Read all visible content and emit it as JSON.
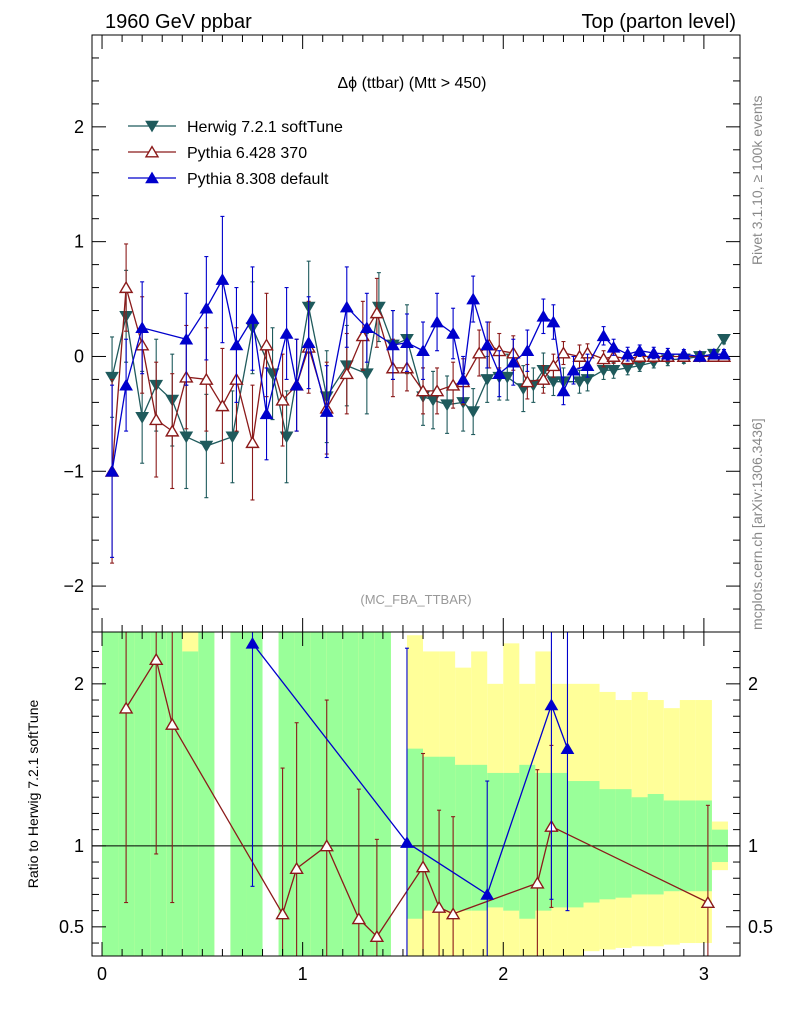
{
  "header": {
    "left": "1960 GeV ppbar",
    "right": "Top (parton level)"
  },
  "side_labels": {
    "rivet": "Rivet 3.1.10, ≥ 100k events",
    "mcplots": "mcplots.cern.ch [arXiv:1306.3436]"
  },
  "chart_data": [
    {
      "type": "line",
      "title": "Δϕ (ttbar) (Mtt > 450)",
      "watermark": "(MC_FBA_TTBAR)",
      "xlabel": "",
      "ylabel": "",
      "xlim": [
        -0.05,
        3.18
      ],
      "ylim": [
        -2.4,
        2.8
      ],
      "yticks": [
        "−2",
        "−1",
        "0",
        "1",
        "2"
      ],
      "legend_position": "top-left",
      "series": [
        {
          "name": "Herwig 7.2.1 softTune",
          "color": "#1f5a5c",
          "marker": "triangle-down-filled",
          "x": [
            0.05,
            0.12,
            0.2,
            0.27,
            0.35,
            0.42,
            0.52,
            0.65,
            0.75,
            0.85,
            0.92,
            1.03,
            1.12,
            1.22,
            1.32,
            1.38,
            1.45,
            1.52,
            1.6,
            1.65,
            1.72,
            1.8,
            1.85,
            1.92,
            1.98,
            2.02,
            2.1,
            2.15,
            2.2,
            2.25,
            2.3,
            2.38,
            2.42,
            2.5,
            2.55,
            2.62,
            2.68,
            2.75,
            2.82,
            2.9,
            2.98,
            3.05,
            3.1
          ],
          "values": [
            -0.18,
            0.35,
            -0.53,
            -0.25,
            -0.38,
            -0.7,
            -0.78,
            -0.7,
            0.25,
            -0.15,
            -0.7,
            0.43,
            -0.35,
            -0.08,
            -0.15,
            0.43,
            0.1,
            0.15,
            -0.35,
            -0.38,
            -0.42,
            -0.4,
            -0.48,
            -0.2,
            -0.18,
            -0.18,
            -0.28,
            -0.25,
            -0.12,
            -0.22,
            -0.22,
            -0.22,
            -0.2,
            -0.12,
            -0.12,
            -0.1,
            -0.08,
            -0.05,
            -0.03,
            -0.02,
            0.0,
            0.02,
            0.15
          ],
          "errors": [
            0.35,
            0.4,
            0.4,
            0.4,
            0.4,
            0.45,
            0.45,
            0.4,
            0.4,
            0.4,
            0.4,
            0.4,
            0.4,
            0.35,
            0.35,
            0.3,
            0.3,
            0.3,
            0.25,
            0.25,
            0.25,
            0.25,
            0.2,
            0.2,
            0.2,
            0.2,
            0.2,
            0.15,
            0.15,
            0.12,
            0.12,
            0.1,
            0.1,
            0.08,
            0.07,
            0.06,
            0.05,
            0.05,
            0.05,
            0.04,
            0.04,
            0.04,
            0.04
          ]
        },
        {
          "name": "Pythia 6.428 370",
          "color": "#8b1a1a",
          "marker": "triangle-up-open",
          "x": [
            0.05,
            0.12,
            0.2,
            0.27,
            0.35,
            0.42,
            0.52,
            0.6,
            0.67,
            0.75,
            0.82,
            0.9,
            0.97,
            1.03,
            1.12,
            1.22,
            1.3,
            1.37,
            1.45,
            1.52,
            1.6,
            1.67,
            1.75,
            1.8,
            1.88,
            1.93,
            1.98,
            2.05,
            2.12,
            2.2,
            2.25,
            2.3,
            2.38,
            2.42,
            2.5,
            2.55,
            2.62,
            2.68,
            2.75,
            2.82,
            2.9,
            2.98,
            3.05,
            3.1
          ],
          "values": [
            -1.0,
            0.6,
            0.1,
            -0.55,
            -0.65,
            -0.18,
            -0.2,
            -0.43,
            -0.2,
            -0.75,
            0.1,
            -0.38,
            -0.25,
            0.08,
            -0.45,
            -0.15,
            0.18,
            0.38,
            -0.1,
            -0.1,
            -0.3,
            -0.3,
            -0.25,
            -0.22,
            0.03,
            0.1,
            0.05,
            0.03,
            -0.22,
            -0.2,
            -0.08,
            0.03,
            0.0,
            0.03,
            -0.02,
            0.0,
            -0.02,
            0.0,
            0.0,
            0.0,
            0.0,
            0.0,
            0.0,
            0.0
          ],
          "errors": [
            0.8,
            0.38,
            0.42,
            0.5,
            0.5,
            0.45,
            0.45,
            0.5,
            0.45,
            0.5,
            0.45,
            0.4,
            0.4,
            0.4,
            0.4,
            0.35,
            0.3,
            0.3,
            0.25,
            0.2,
            0.2,
            0.2,
            0.2,
            0.2,
            0.2,
            0.2,
            0.15,
            0.15,
            0.15,
            0.12,
            0.1,
            0.1,
            0.1,
            0.08,
            0.07,
            0.06,
            0.05,
            0.05,
            0.05,
            0.04,
            0.04,
            0.04,
            0.04,
            0.04
          ]
        },
        {
          "name": "Pythia 8.308 default",
          "color": "#0000cc",
          "marker": "triangle-up-filled",
          "x": [
            0.05,
            0.12,
            0.2,
            0.42,
            0.52,
            0.6,
            0.67,
            0.75,
            0.82,
            0.92,
            0.97,
            1.03,
            1.12,
            1.22,
            1.32,
            1.45,
            1.52,
            1.6,
            1.67,
            1.75,
            1.8,
            1.85,
            1.92,
            1.98,
            2.05,
            2.12,
            2.2,
            2.25,
            2.3,
            2.35,
            2.42,
            2.5,
            2.55,
            2.62,
            2.68,
            2.75,
            2.82,
            2.9,
            2.98,
            3.05,
            3.1
          ],
          "values": [
            -1.0,
            -0.25,
            0.25,
            0.15,
            0.42,
            0.67,
            0.1,
            0.33,
            -0.5,
            0.2,
            -0.25,
            0.12,
            -0.48,
            0.43,
            0.25,
            0.1,
            0.12,
            0.05,
            0.3,
            0.2,
            -0.2,
            0.5,
            0.1,
            -0.15,
            -0.05,
            0.05,
            0.35,
            0.3,
            -0.3,
            -0.12,
            -0.08,
            0.18,
            0.08,
            0.02,
            0.05,
            0.03,
            0.02,
            0.02,
            0.0,
            0.02,
            0.02
          ],
          "errors": [
            0.75,
            0.4,
            0.4,
            0.4,
            0.45,
            0.55,
            0.5,
            0.45,
            0.4,
            0.4,
            0.4,
            0.4,
            0.4,
            0.35,
            0.3,
            0.3,
            0.25,
            0.25,
            0.25,
            0.22,
            0.2,
            0.2,
            0.2,
            0.2,
            0.2,
            0.18,
            0.15,
            0.15,
            0.12,
            0.12,
            0.1,
            0.08,
            0.07,
            0.06,
            0.05,
            0.05,
            0.05,
            0.04,
            0.04,
            0.04,
            0.04
          ]
        }
      ]
    },
    {
      "type": "line",
      "title": "",
      "ylabel": "Ratio to Herwig 7.2.1 softTune",
      "xlabel": "",
      "xlim": [
        -0.05,
        3.18
      ],
      "ylim": [
        0.32,
        2.32
      ],
      "xticks": [
        "0",
        "1",
        "2",
        "3"
      ],
      "yticks": [
        "0.5",
        "1",
        "2"
      ],
      "reference_line": 1,
      "bands": {
        "x_edges": [
          0.0,
          0.08,
          0.16,
          0.24,
          0.32,
          0.4,
          0.48,
          0.56,
          0.64,
          0.72,
          0.8,
          0.88,
          0.96,
          1.04,
          1.12,
          1.2,
          1.28,
          1.36,
          1.44,
          1.52,
          1.6,
          1.68,
          1.76,
          1.84,
          1.92,
          2.0,
          2.08,
          2.16,
          2.24,
          2.32,
          2.4,
          2.48,
          2.56,
          2.64,
          2.72,
          2.8,
          2.88,
          2.96,
          3.04,
          3.12
        ],
        "inner_low": [
          0.3,
          0.3,
          0.3,
          0.3,
          0.3,
          0.3,
          0.3,
          0.3,
          0.3,
          0.3,
          0.3,
          0.3,
          0.3,
          0.3,
          0.3,
          0.3,
          0.3,
          0.3,
          0.3,
          0.55,
          0.6,
          0.6,
          0.6,
          0.6,
          0.62,
          0.6,
          0.55,
          0.6,
          0.62,
          0.62,
          0.65,
          0.67,
          0.68,
          0.7,
          0.7,
          0.72,
          0.72,
          0.72,
          0.9
        ],
        "inner_high": [
          2.4,
          2.4,
          2.4,
          2.4,
          2.4,
          2.2,
          2.4,
          2.4,
          2.4,
          2.4,
          2.4,
          2.4,
          2.4,
          2.4,
          2.4,
          2.4,
          2.4,
          2.4,
          2.4,
          1.6,
          1.55,
          1.55,
          1.5,
          1.5,
          1.45,
          1.45,
          1.5,
          1.45,
          1.45,
          1.4,
          1.4,
          1.35,
          1.35,
          1.3,
          1.32,
          1.28,
          1.28,
          1.28,
          1.1
        ],
        "outer_low": [
          0.3,
          0.3,
          0.3,
          0.3,
          0.3,
          0.3,
          0.3,
          0.3,
          0.3,
          0.3,
          0.3,
          0.3,
          0.3,
          0.3,
          0.3,
          0.3,
          0.3,
          0.3,
          0.3,
          0.3,
          0.3,
          0.3,
          0.3,
          0.3,
          0.3,
          0.3,
          0.3,
          0.3,
          0.3,
          0.3,
          0.35,
          0.36,
          0.37,
          0.38,
          0.38,
          0.39,
          0.4,
          0.4,
          0.85
        ],
        "outer_high": [
          2.4,
          2.4,
          2.4,
          2.4,
          2.4,
          2.4,
          2.4,
          2.4,
          2.4,
          2.4,
          2.4,
          2.4,
          2.4,
          2.4,
          2.4,
          2.4,
          2.4,
          2.4,
          2.4,
          2.3,
          2.2,
          2.2,
          2.1,
          2.2,
          2.0,
          2.25,
          2.0,
          2.2,
          2.0,
          2.0,
          2.0,
          1.95,
          1.9,
          1.95,
          1.9,
          1.85,
          1.9,
          1.9,
          1.15
        ],
        "gaps": [
          [
            0.56,
            0.64
          ],
          [
            0.8,
            0.88
          ],
          [
            1.4,
            1.48
          ]
        ]
      },
      "series": [
        {
          "name": "Pythia 6.428 370",
          "color": "#8b1a1a",
          "marker": "triangle-up-open",
          "x": [
            0.12,
            0.27,
            0.35,
            0.9,
            0.97,
            1.12,
            1.28,
            1.37,
            1.6,
            1.68,
            1.75,
            2.17,
            2.24,
            3.02
          ],
          "values": [
            1.85,
            2.15,
            1.75,
            0.58,
            0.86,
            1.0,
            0.55,
            0.44,
            0.87,
            0.62,
            0.58,
            0.77,
            1.12,
            0.65
          ],
          "errors": [
            1.2,
            1.2,
            1.1,
            0.9,
            0.9,
            0.9,
            0.8,
            0.6,
            0.7,
            0.6,
            0.6,
            0.7,
            0.5,
            0.6
          ]
        },
        {
          "name": "Pythia 8.308 default",
          "color": "#0000cc",
          "marker": "triangle-up-filled",
          "x": [
            0.75,
            1.52,
            1.92,
            2.24,
            2.32
          ],
          "values": [
            2.25,
            1.02,
            0.7,
            1.87,
            1.6
          ],
          "errors": [
            1.5,
            1.2,
            0.7,
            1.2,
            1.0
          ]
        }
      ]
    }
  ]
}
